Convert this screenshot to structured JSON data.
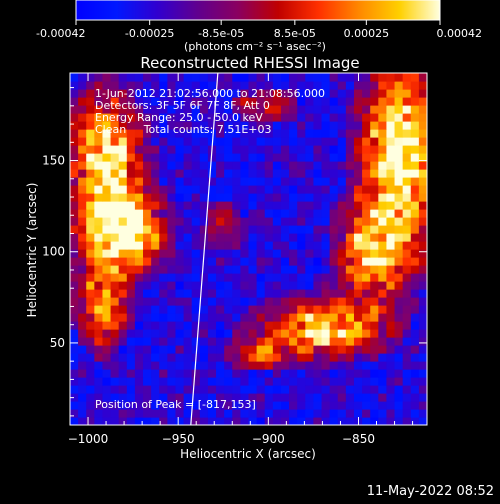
{
  "colorbar": {
    "tick_labels": [
      "-0.00042",
      "-0.00025",
      "-8.5e-05",
      "8.5e-05",
      "0.00025",
      "0.00042"
    ],
    "tick_values": [
      -0.00042,
      -0.00025,
      -8.5e-05,
      8.5e-05,
      0.00025,
      0.00042
    ],
    "range": [
      -0.00042,
      0.00042
    ],
    "unit_label": "(photons cm⁻² s⁻¹ asec⁻²)",
    "colormap_stops": [
      "#0000ff",
      "#0018ff",
      "#3000d0",
      "#60008f",
      "#8a0060",
      "#c00000",
      "#ff3000",
      "#ff8800",
      "#ffd000",
      "#ffffe0"
    ]
  },
  "chart_data": {
    "type": "heatmap",
    "title": "Reconstructed RHESSI Image",
    "xlabel": "Heliocentric X (arcsec)",
    "ylabel": "Heliocentric Y (arcsec)",
    "xlim": [
      -1010,
      -812
    ],
    "ylim": [
      5,
      198
    ],
    "x_ticks": [
      -1000,
      -950,
      -900,
      -850
    ],
    "x_tick_labels": [
      "−1000",
      "−950",
      "−900",
      "−850"
    ],
    "y_ticks": [
      50,
      100,
      150
    ],
    "y_tick_labels": [
      "50",
      "100",
      "150"
    ],
    "limb_line": [
      [
        -943,
        5
      ],
      [
        -928,
        198
      ]
    ],
    "annotations": [
      "1-Jun-2012 21:02:56.000 to 21:08:56.000",
      "Detectors: 3F 5F 6F 7F 8F, Att 0",
      "Energy Range: 25.0 - 50.0 keV",
      "Clean     Total counts: 7.51E+03"
    ],
    "peak_text": "Position of Peak = [-817,153]",
    "peak": [
      -817,
      153
    ],
    "hot_regions": [
      {
        "name": "east-limb-upper",
        "x": -990,
        "y": 150,
        "sx": 14,
        "sy": 25,
        "amp": 1.0
      },
      {
        "name": "east-limb-mid",
        "x": -980,
        "y": 110,
        "sx": 16,
        "sy": 15,
        "amp": 0.95
      },
      {
        "name": "east-limb-lower",
        "x": -992,
        "y": 70,
        "sx": 10,
        "sy": 16,
        "amp": 0.75
      },
      {
        "name": "west-arc-upper",
        "x": -826,
        "y": 155,
        "sx": 16,
        "sy": 34,
        "amp": 1.05
      },
      {
        "name": "west-arc-mid",
        "x": -842,
        "y": 100,
        "sx": 14,
        "sy": 18,
        "amp": 0.8
      },
      {
        "name": "southwest-band",
        "x": -870,
        "y": 58,
        "sx": 24,
        "sy": 11,
        "amp": 0.9
      },
      {
        "name": "south-knot",
        "x": -906,
        "y": 44,
        "sx": 10,
        "sy": 6,
        "amp": 0.6
      },
      {
        "name": "upper-middle-knot",
        "x": -900,
        "y": 180,
        "sx": 12,
        "sy": 7,
        "amp": 0.5
      },
      {
        "name": "center-knot",
        "x": -925,
        "y": 115,
        "sx": 8,
        "sy": 10,
        "amp": 0.45
      }
    ]
  },
  "footer": {
    "timestamp": "11-May-2022 08:52"
  }
}
